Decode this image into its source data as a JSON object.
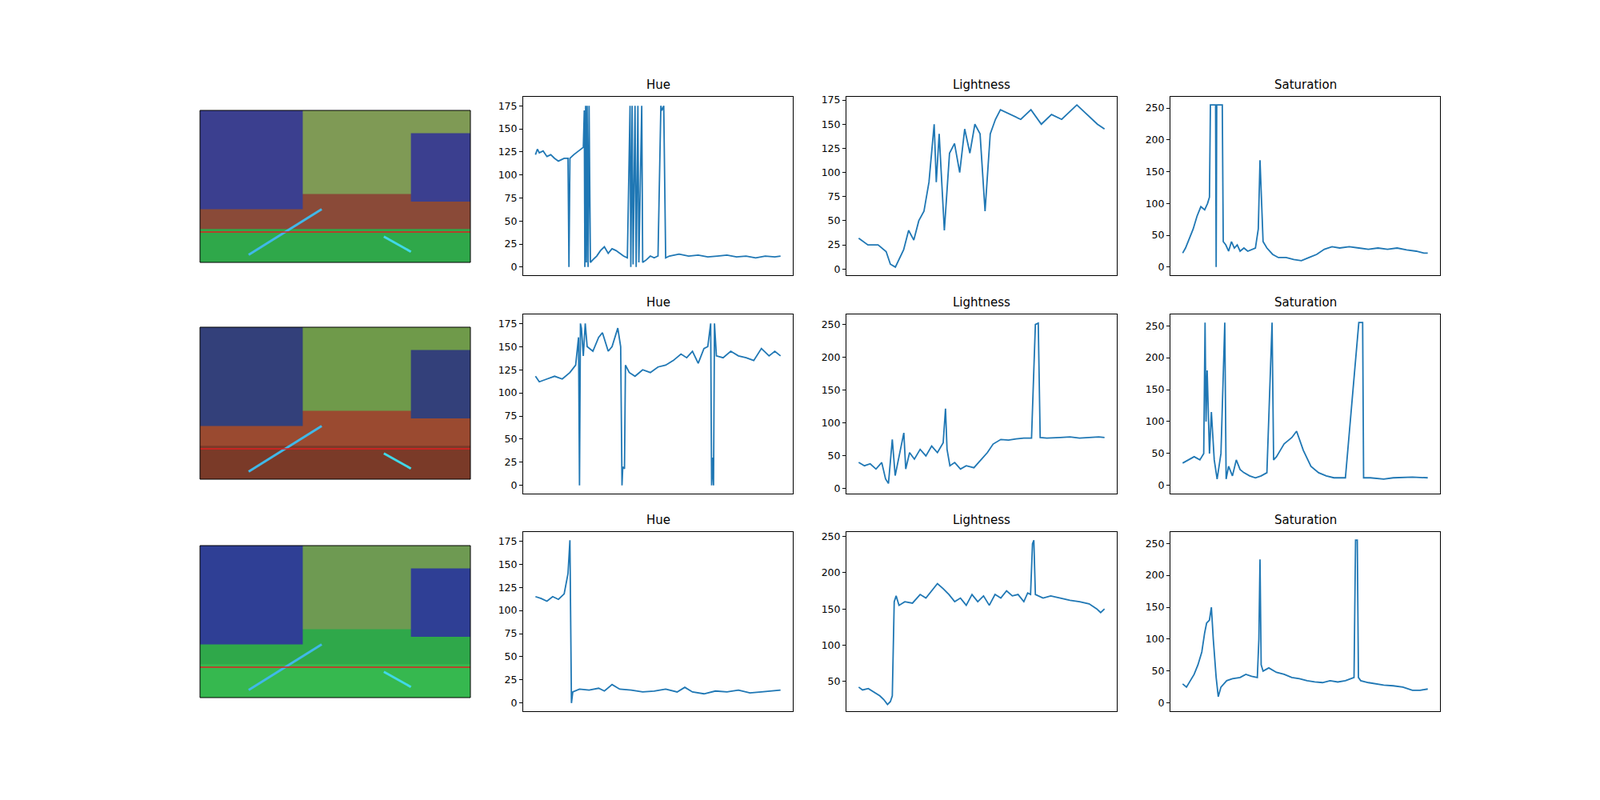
{
  "chart_data": [
    {
      "type": "line",
      "title": "Hue",
      "color": "#1f77b4",
      "tick_labels": "y",
      "xlim": [
        -64,
        1344
      ],
      "ylim": [
        -8.8,
        184.8
      ],
      "yticks": [
        0,
        25,
        50,
        75,
        100,
        125,
        150,
        175
      ],
      "x": [
        0,
        10,
        20,
        40,
        60,
        80,
        100,
        120,
        150,
        170,
        175,
        180,
        200,
        220,
        240,
        250,
        255,
        258,
        262,
        266,
        270,
        275,
        280,
        287,
        300,
        320,
        340,
        360,
        380,
        400,
        420,
        440,
        460,
        480,
        494,
        498,
        505,
        510,
        520,
        526,
        535,
        540,
        555,
        560,
        580,
        600,
        620,
        640,
        655,
        660,
        670,
        680,
        700,
        750,
        800,
        850,
        900,
        950,
        1000,
        1050,
        1100,
        1150,
        1200,
        1250,
        1280
      ],
      "values": [
        122,
        128,
        124,
        126,
        120,
        122,
        118,
        115,
        118,
        118,
        0,
        118,
        122,
        125,
        128,
        130,
        170,
        0,
        175,
        5,
        175,
        0,
        175,
        5,
        8,
        12,
        18,
        22,
        15,
        20,
        18,
        15,
        12,
        10,
        175,
        0,
        175,
        3,
        175,
        0,
        175,
        5,
        175,
        5,
        8,
        12,
        10,
        12,
        175,
        170,
        175,
        10,
        12,
        14,
        12,
        13,
        11,
        12,
        13,
        11,
        12,
        10,
        12,
        11,
        12
      ]
    },
    {
      "type": "line",
      "title": "Lightness",
      "color": "#1f77b4",
      "tick_labels": "y",
      "xlim": [
        -64,
        1344
      ],
      "ylim": [
        -6.4,
        178.4
      ],
      "yticks": [
        0,
        25,
        50,
        75,
        100,
        125,
        150,
        175
      ],
      "x": [
        0,
        48,
        101,
        143,
        165,
        191,
        234,
        260,
        287,
        313,
        340,
        366,
        393,
        404,
        419,
        446,
        473,
        499,
        526,
        552,
        579,
        605,
        632,
        658,
        685,
        712,
        738,
        791,
        844,
        897,
        951,
        1004,
        1057,
        1136,
        1190,
        1243,
        1280
      ],
      "values": [
        32,
        25,
        25,
        18,
        5,
        2,
        20,
        40,
        30,
        50,
        60,
        90,
        150,
        90,
        140,
        40,
        120,
        130,
        100,
        145,
        120,
        150,
        140,
        60,
        140,
        155,
        165,
        160,
        155,
        165,
        150,
        160,
        155,
        170,
        160,
        150,
        145
      ]
    },
    {
      "type": "line",
      "title": "Saturation",
      "color": "#1f77b4",
      "tick_labels": "y",
      "xlim": [
        -64,
        1344
      ],
      "ylim": [
        -12.75,
        267.75
      ],
      "yticks": [
        0,
        50,
        100,
        150,
        200,
        250
      ],
      "x": [
        0,
        15,
        35,
        55,
        75,
        95,
        115,
        130,
        140,
        145,
        160,
        172,
        175,
        178,
        195,
        207,
        212,
        225,
        240,
        255,
        270,
        285,
        300,
        320,
        340,
        360,
        380,
        395,
        400,
        404,
        410,
        420,
        440,
        470,
        500,
        540,
        580,
        620,
        660,
        700,
        740,
        780,
        820,
        870,
        920,
        970,
        1020,
        1070,
        1120,
        1170,
        1220,
        1260,
        1280
      ],
      "values": [
        22,
        30,
        45,
        60,
        80,
        95,
        90,
        100,
        110,
        255,
        255,
        255,
        0,
        255,
        255,
        255,
        40,
        35,
        25,
        40,
        30,
        35,
        25,
        30,
        25,
        28,
        30,
        60,
        140,
        168,
        120,
        40,
        30,
        20,
        15,
        15,
        12,
        10,
        15,
        20,
        28,
        32,
        30,
        32,
        30,
        28,
        30,
        28,
        30,
        27,
        25,
        22,
        22
      ]
    },
    {
      "type": "line",
      "title": "Hue",
      "color": "#1f77b4",
      "tick_labels": "y",
      "xlim": [
        -64,
        1344
      ],
      "ylim": [
        -8.8,
        184.8
      ],
      "yticks": [
        0,
        25,
        50,
        75,
        100,
        125,
        150,
        175
      ],
      "x": [
        0,
        20,
        60,
        100,
        140,
        180,
        210,
        225,
        230,
        235,
        240,
        250,
        260,
        270,
        300,
        330,
        350,
        380,
        400,
        430,
        445,
        452,
        456,
        465,
        470,
        490,
        520,
        560,
        600,
        640,
        680,
        720,
        760,
        790,
        820,
        850,
        880,
        900,
        915,
        920,
        925,
        930,
        935,
        945,
        980,
        1020,
        1060,
        1100,
        1140,
        1180,
        1220,
        1250,
        1280
      ],
      "values": [
        118,
        112,
        115,
        118,
        115,
        122,
        130,
        160,
        0,
        175,
        170,
        140,
        175,
        150,
        145,
        160,
        165,
        145,
        150,
        170,
        150,
        0,
        20,
        18,
        130,
        122,
        118,
        125,
        122,
        128,
        130,
        135,
        142,
        138,
        145,
        132,
        148,
        150,
        175,
        0,
        30,
        0,
        175,
        140,
        138,
        145,
        140,
        138,
        135,
        148,
        140,
        145,
        140
      ]
    },
    {
      "type": "line",
      "title": "Lightness",
      "color": "#1f77b4",
      "tick_labels": "y",
      "xlim": [
        -64,
        1344
      ],
      "ylim": [
        -7.4,
        265.4
      ],
      "yticks": [
        0,
        50,
        100,
        150,
        200,
        250
      ],
      "x": [
        0,
        30,
        60,
        90,
        120,
        140,
        155,
        165,
        175,
        190,
        210,
        235,
        245,
        265,
        290,
        320,
        350,
        380,
        410,
        440,
        452,
        460,
        475,
        500,
        530,
        560,
        600,
        640,
        670,
        700,
        740,
        780,
        820,
        860,
        900,
        920,
        935,
        945,
        980,
        1050,
        1100,
        1150,
        1200,
        1250,
        1280
      ],
      "values": [
        40,
        35,
        38,
        30,
        40,
        15,
        8,
        45,
        75,
        20,
        50,
        85,
        30,
        55,
        45,
        60,
        50,
        65,
        55,
        70,
        122,
        60,
        35,
        40,
        30,
        35,
        32,
        45,
        55,
        68,
        75,
        74,
        76,
        77,
        77,
        250,
        252,
        78,
        77,
        78,
        79,
        77,
        78,
        79,
        78
      ]
    },
    {
      "type": "line",
      "title": "Saturation",
      "color": "#1f77b4",
      "tick_labels": "y",
      "xlim": [
        -64,
        1344
      ],
      "ylim": [
        -12.75,
        267.75
      ],
      "yticks": [
        0,
        50,
        100,
        150,
        200,
        250
      ],
      "x": [
        0,
        30,
        60,
        90,
        110,
        117,
        122,
        128,
        140,
        150,
        165,
        180,
        200,
        220,
        227,
        240,
        260,
        280,
        300,
        320,
        350,
        380,
        410,
        440,
        460,
        467,
        475,
        490,
        510,
        530,
        550,
        570,
        595,
        630,
        670,
        710,
        750,
        790,
        850,
        920,
        925,
        940,
        945,
        980,
        1050,
        1100,
        1200,
        1250,
        1280
      ],
      "values": [
        35,
        40,
        45,
        40,
        50,
        255,
        100,
        180,
        50,
        115,
        40,
        10,
        50,
        255,
        10,
        30,
        15,
        40,
        25,
        20,
        15,
        12,
        15,
        20,
        180,
        255,
        40,
        45,
        55,
        65,
        70,
        75,
        85,
        55,
        30,
        20,
        15,
        12,
        12,
        255,
        255,
        255,
        12,
        12,
        10,
        12,
        13,
        12,
        12
      ]
    },
    {
      "type": "line",
      "title": "Hue",
      "color": "#1f77b4",
      "tick_labels": "y",
      "xlim": [
        -64,
        1344
      ],
      "ylim": [
        -8.8,
        184.8
      ],
      "yticks": [
        0,
        25,
        50,
        75,
        100,
        125,
        150,
        175
      ],
      "x": [
        0,
        30,
        60,
        90,
        120,
        150,
        170,
        180,
        188,
        195,
        230,
        280,
        330,
        360,
        400,
        440,
        500,
        560,
        620,
        680,
        740,
        780,
        820,
        880,
        940,
        1000,
        1060,
        1120,
        1180,
        1240,
        1280
      ],
      "values": [
        115,
        113,
        110,
        115,
        112,
        118,
        140,
        176,
        0,
        12,
        15,
        14,
        16,
        13,
        20,
        15,
        14,
        12,
        13,
        15,
        12,
        17,
        12,
        10,
        13,
        12,
        14,
        11,
        12,
        13,
        14
      ]
    },
    {
      "type": "line",
      "title": "Lightness",
      "color": "#1f77b4",
      "tick_labels": "y",
      "xlim": [
        -64,
        1344
      ],
      "ylim": [
        8.7,
        256.3
      ],
      "yticks": [
        50,
        100,
        150,
        200,
        250
      ],
      "x": [
        0,
        20,
        50,
        80,
        110,
        130,
        150,
        165,
        175,
        185,
        195,
        210,
        240,
        280,
        320,
        350,
        380,
        410,
        440,
        470,
        500,
        530,
        560,
        590,
        620,
        650,
        680,
        710,
        740,
        770,
        800,
        830,
        860,
        880,
        895,
        905,
        912,
        920,
        960,
        1000,
        1050,
        1100,
        1150,
        1200,
        1240,
        1260,
        1280
      ],
      "values": [
        42,
        38,
        40,
        35,
        30,
        25,
        18,
        22,
        30,
        160,
        168,
        155,
        160,
        158,
        170,
        165,
        175,
        185,
        178,
        170,
        160,
        165,
        155,
        170,
        160,
        168,
        155,
        170,
        165,
        175,
        168,
        170,
        160,
        172,
        170,
        240,
        245,
        170,
        165,
        168,
        165,
        162,
        160,
        157,
        150,
        145,
        150
      ]
    },
    {
      "type": "line",
      "title": "Saturation",
      "color": "#1f77b4",
      "tick_labels": "y",
      "xlim": [
        -64,
        1344
      ],
      "ylim": [
        -12.75,
        267.75
      ],
      "yticks": [
        0,
        50,
        100,
        150,
        200,
        250
      ],
      "x": [
        0,
        20,
        40,
        60,
        80,
        100,
        115,
        125,
        140,
        150,
        160,
        175,
        186,
        200,
        230,
        260,
        300,
        330,
        360,
        390,
        398,
        404,
        410,
        420,
        450,
        490,
        530,
        570,
        610,
        650,
        690,
        730,
        770,
        810,
        850,
        880,
        895,
        903,
        912,
        918,
        930,
        970,
        1010,
        1050,
        1100,
        1150,
        1200,
        1240,
        1280
      ],
      "values": [
        30,
        25,
        35,
        45,
        60,
        80,
        110,
        125,
        130,
        150,
        100,
        40,
        10,
        25,
        35,
        38,
        40,
        45,
        42,
        40,
        100,
        225,
        60,
        50,
        55,
        48,
        45,
        40,
        38,
        35,
        33,
        32,
        35,
        33,
        35,
        38,
        40,
        255,
        255,
        40,
        35,
        32,
        30,
        28,
        27,
        25,
        20,
        20,
        22
      ]
    }
  ]
}
